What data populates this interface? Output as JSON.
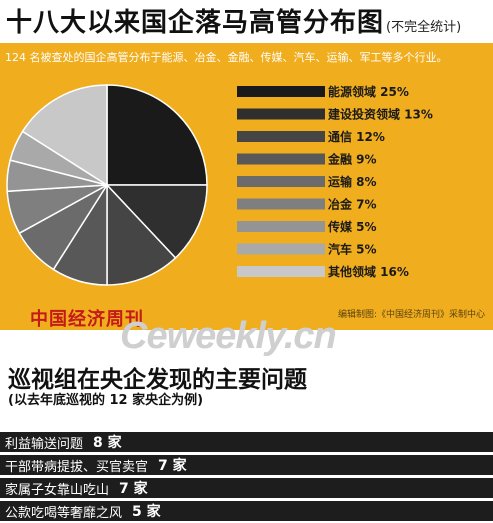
{
  "header": {
    "title": "十八大以来国企落马高管分布图",
    "note": "(不完全统计)"
  },
  "subtitle": "124 名被查处的国企高管分布于能源、冶金、金融、传媒、汽车、运输、军工等多个行业。",
  "credit": "编辑制图:《中国经济周刊》采制中心",
  "logo": "中国经济周刊",
  "watermark": "Ceweekly.cn",
  "chart_data": {
    "type": "pie",
    "categories": [
      "能源领域",
      "建设投资领域",
      "通信",
      "金融",
      "运输",
      "冶金",
      "传媒",
      "汽车",
      "其他领域"
    ],
    "values": [
      25,
      13,
      12,
      9,
      8,
      7,
      5,
      5,
      16
    ],
    "labels": [
      "能源领域 25%",
      "建设投资领域 13%",
      "通信 12%",
      "金融 9%",
      "运输 8%",
      "冶金 7%",
      "传媒 5%",
      "汽车 5%",
      "其他领域 16%"
    ],
    "unit": "%",
    "colors": [
      "#1a1a1a",
      "#2f2f2f",
      "#454545",
      "#585858",
      "#6b6b6b",
      "#7f7f7f",
      "#949494",
      "#a9a9a9",
      "#c8c8c8"
    ],
    "legend_placement": "right"
  },
  "section2": {
    "title": "巡视组在央企发现的主要问题",
    "subtitle": "(以去年底巡视的 12 家央企为例)",
    "issues": [
      {
        "label": "利益输送问题",
        "count": "8 家"
      },
      {
        "label": "干部带病提拔、买官卖官",
        "count": "7 家"
      },
      {
        "label": "家属子女靠山吃山",
        "count": "7 家"
      },
      {
        "label": "公款吃喝等奢靡之风",
        "count": "5 家"
      }
    ]
  }
}
